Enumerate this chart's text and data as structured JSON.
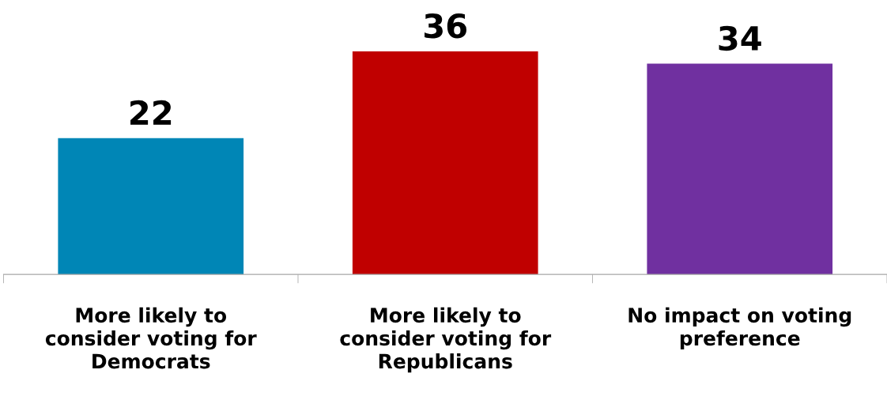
{
  "chart_data": {
    "type": "bar",
    "categories": [
      "More likely to\nconsider voting for\nDemocrats",
      "More likely to\nconsider voting for\nRepublicans",
      "No impact on voting\npreference"
    ],
    "values": [
      22,
      36,
      34
    ],
    "colors": [
      "#0086b6",
      "#c00000",
      "#7030a0"
    ],
    "data_labels": true,
    "grid": false,
    "legend": false
  }
}
